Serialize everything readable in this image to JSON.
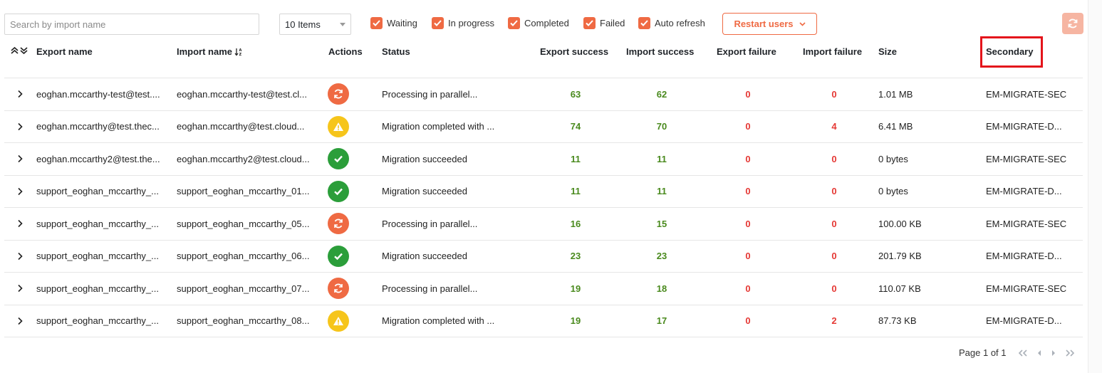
{
  "toolbar": {
    "search_placeholder": "Search by import name",
    "items_select": "10 Items",
    "filters": [
      "Waiting",
      "In progress",
      "Completed",
      "Failed",
      "Auto refresh"
    ],
    "restart_label": "Restart users"
  },
  "table": {
    "columns": [
      "Export name",
      "Import name",
      "Actions",
      "Status",
      "Export success",
      "Import success",
      "Export failure",
      "Import failure",
      "Size",
      "Secondary"
    ],
    "rows": [
      {
        "export_name": "eoghan.mccarthy-test@test....",
        "import_name": "eoghan.mccarthy-test@test.cl...",
        "icon": "processing",
        "status": "Processing in parallel...",
        "export_success": "63",
        "import_success": "62",
        "export_failure": "0",
        "import_failure": "0",
        "size": "1.01 MB",
        "secondary": "EM-MIGRATE-SEC"
      },
      {
        "export_name": "eoghan.mccarthy@test.thec...",
        "import_name": "eoghan.mccarthy@test.cloud...",
        "icon": "warning",
        "status": "Migration completed with ...",
        "export_success": "74",
        "import_success": "70",
        "export_failure": "0",
        "import_failure": "4",
        "size": "6.41 MB",
        "secondary": "EM-MIGRATE-D..."
      },
      {
        "export_name": "eoghan.mccarthy2@test.the...",
        "import_name": "eoghan.mccarthy2@test.cloud...",
        "icon": "success",
        "status": "Migration succeeded",
        "export_success": "11",
        "import_success": "11",
        "export_failure": "0",
        "import_failure": "0",
        "size": "0 bytes",
        "secondary": "EM-MIGRATE-SEC"
      },
      {
        "export_name": "support_eoghan_mccarthy_...",
        "import_name": "support_eoghan_mccarthy_01...",
        "icon": "success",
        "status": "Migration succeeded",
        "export_success": "11",
        "import_success": "11",
        "export_failure": "0",
        "import_failure": "0",
        "size": "0 bytes",
        "secondary": "EM-MIGRATE-D..."
      },
      {
        "export_name": "support_eoghan_mccarthy_...",
        "import_name": "support_eoghan_mccarthy_05...",
        "icon": "processing",
        "status": "Processing in parallel...",
        "export_success": "16",
        "import_success": "15",
        "export_failure": "0",
        "import_failure": "0",
        "size": "100.00 KB",
        "secondary": "EM-MIGRATE-SEC"
      },
      {
        "export_name": "support_eoghan_mccarthy_...",
        "import_name": "support_eoghan_mccarthy_06...",
        "icon": "success",
        "status": "Migration succeeded",
        "export_success": "23",
        "import_success": "23",
        "export_failure": "0",
        "import_failure": "0",
        "size": "201.79 KB",
        "secondary": "EM-MIGRATE-D..."
      },
      {
        "export_name": "support_eoghan_mccarthy_...",
        "import_name": "support_eoghan_mccarthy_07...",
        "icon": "processing",
        "status": "Processing in parallel...",
        "export_success": "19",
        "import_success": "18",
        "export_failure": "0",
        "import_failure": "0",
        "size": "110.07 KB",
        "secondary": "EM-MIGRATE-SEC"
      },
      {
        "export_name": "support_eoghan_mccarthy_...",
        "import_name": "support_eoghan_mccarthy_08...",
        "icon": "warning",
        "status": "Migration completed with ...",
        "export_success": "19",
        "import_success": "17",
        "export_failure": "0",
        "import_failure": "2",
        "size": "87.73 KB",
        "secondary": "EM-MIGRATE-D..."
      }
    ]
  },
  "pager": {
    "label": "Page 1 of 1"
  },
  "colors": {
    "accent": "#ef6a43",
    "success": "#2b9e3a",
    "warning": "#f6c51b",
    "failure": "#e53935",
    "success_text": "#4a8a1e",
    "highlight": "#e4141b"
  },
  "icons": [
    "check-icon",
    "chevron-down-icon",
    "refresh-icon",
    "expand-collapse-icon",
    "sort-icon",
    "chevron-right-icon",
    "processing-icon",
    "warning-icon",
    "success-icon",
    "first-page-icon",
    "prev-page-icon",
    "next-page-icon",
    "last-page-icon"
  ]
}
